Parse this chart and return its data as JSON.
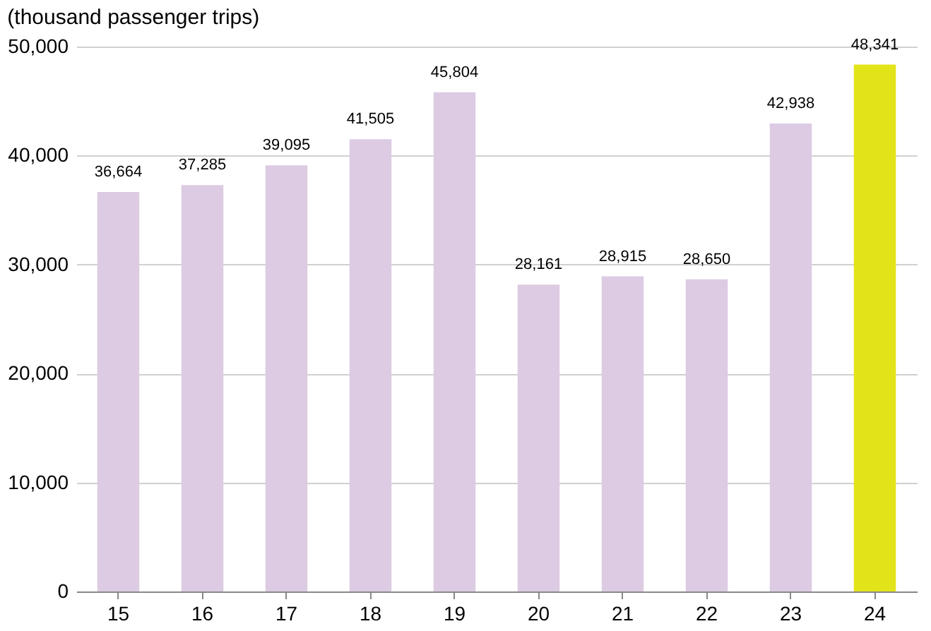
{
  "chart_data": {
    "type": "bar",
    "title": "(thousand passenger trips)",
    "categories": [
      "15",
      "16",
      "17",
      "18",
      "19",
      "20",
      "21",
      "22",
      "23",
      "24"
    ],
    "values": [
      36664,
      37285,
      39095,
      41505,
      45804,
      28161,
      28915,
      28650,
      42938,
      48341
    ],
    "value_labels": [
      "36,664",
      "37,285",
      "39,095",
      "41,505",
      "45,804",
      "28,161",
      "28,915",
      "28,650",
      "42,938",
      "48,341"
    ],
    "colors": [
      "#dccbe3",
      "#dccbe3",
      "#dccbe3",
      "#dccbe3",
      "#dccbe3",
      "#dccbe3",
      "#dccbe3",
      "#dccbe3",
      "#dccbe3",
      "#e3e31a"
    ],
    "ylim": [
      0,
      50000
    ],
    "yticks": [
      0,
      {
        "value": 10000,
        "label": "10,000"
      },
      {
        "value": 20000,
        "label": "20,000"
      },
      {
        "value": 30000,
        "label": "30,000"
      },
      {
        "value": 40000,
        "label": "40,000"
      },
      {
        "value": 50000,
        "label": "50,000"
      }
    ],
    "grid": "y"
  }
}
